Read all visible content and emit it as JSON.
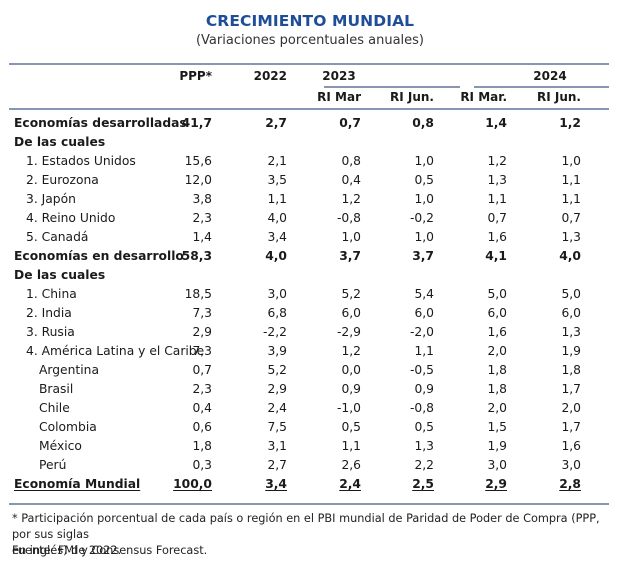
{
  "title": "CRECIMIENTO MUNDIAL",
  "subtitle": "(Variaciones porcentuales anuales)",
  "header": {
    "ppp": "PPP*",
    "y2022": "2022",
    "y2023": "2023",
    "y2024": "2024",
    "sub": [
      "RI Mar",
      "RI Jun.",
      "RI Mar.",
      "RI Jun."
    ]
  },
  "rows": [
    {
      "label": "Economías desarrolladas",
      "style": "bold",
      "values": [
        "41,7",
        "2,7",
        "0,7",
        "0,8",
        "1,4",
        "1,2"
      ]
    },
    {
      "label": "De las cuales",
      "style": "bold",
      "values": []
    },
    {
      "label": "1. Estados Unidos",
      "style": "ind1",
      "values": [
        "15,6",
        "2,1",
        "0,8",
        "1,0",
        "1,2",
        "1,0"
      ]
    },
    {
      "label": "2. Eurozona",
      "style": "ind1",
      "values": [
        "12,0",
        "3,5",
        "0,4",
        "0,5",
        "1,3",
        "1,1"
      ]
    },
    {
      "label": "3. Japón",
      "style": "ind1",
      "values": [
        "3,8",
        "1,1",
        "1,2",
        "1,0",
        "1,1",
        "1,1"
      ]
    },
    {
      "label": "4. Reino Unido",
      "style": "ind1",
      "values": [
        "2,3",
        "4,0",
        "-0,8",
        "-0,2",
        "0,7",
        "0,7"
      ]
    },
    {
      "label": "5. Canadá",
      "style": "ind1",
      "values": [
        "1,4",
        "3,4",
        "1,0",
        "1,0",
        "1,6",
        "1,3"
      ]
    },
    {
      "label": "Economías en desarrollo",
      "style": "bold",
      "values": [
        "58,3",
        "4,0",
        "3,7",
        "3,7",
        "4,1",
        "4,0"
      ]
    },
    {
      "label": "De las cuales",
      "style": "bold",
      "values": []
    },
    {
      "label": "1. China",
      "style": "ind1",
      "values": [
        "18,5",
        "3,0",
        "5,2",
        "5,4",
        "5,0",
        "5,0"
      ]
    },
    {
      "label": "2. India",
      "style": "ind1",
      "values": [
        "7,3",
        "6,8",
        "6,0",
        "6,0",
        "6,0",
        "6,0"
      ]
    },
    {
      "label": "3. Rusia",
      "style": "ind1",
      "values": [
        "2,9",
        "-2,2",
        "-2,9",
        "-2,0",
        "1,6",
        "1,3"
      ]
    },
    {
      "label": "4.  América Latina y el Caribe",
      "style": "ind1",
      "values": [
        "7,3",
        "3,9",
        "1,2",
        "1,1",
        "2,0",
        "1,9"
      ]
    },
    {
      "label": "Argentina",
      "style": "ind2",
      "values": [
        "0,7",
        "5,2",
        "0,0",
        "-0,5",
        "1,8",
        "1,8"
      ]
    },
    {
      "label": "Brasil",
      "style": "ind2",
      "values": [
        "2,3",
        "2,9",
        "0,9",
        "0,9",
        "1,8",
        "1,7"
      ]
    },
    {
      "label": "Chile",
      "style": "ind2",
      "values": [
        "0,4",
        "2,4",
        "-1,0",
        "-0,8",
        "2,0",
        "2,0"
      ]
    },
    {
      "label": "Colombia",
      "style": "ind2",
      "values": [
        "0,6",
        "7,5",
        "0,5",
        "0,5",
        "1,5",
        "1,7"
      ]
    },
    {
      "label": "México",
      "style": "ind2",
      "values": [
        "1,8",
        "3,1",
        "1,1",
        "1,3",
        "1,9",
        "1,6"
      ]
    },
    {
      "label": "Perú",
      "style": "ind2",
      "values": [
        "0,3",
        "2,7",
        "2,6",
        "2,2",
        "3,0",
        "3,0"
      ]
    },
    {
      "label": "Economía Mundial",
      "style": "total",
      "values": [
        "100,0",
        "3,4",
        "2,4",
        "2,5",
        "2,9",
        "2,8"
      ]
    }
  ],
  "footnote": {
    "line1": "* Participación porcentual de cada país o región en el PBI mundial de Paridad de Poder de Compra (PPP, por sus siglas",
    "line2": "en inglés) de 2022.",
    "source": "Fuente: FMI y Consensus Forecast."
  }
}
